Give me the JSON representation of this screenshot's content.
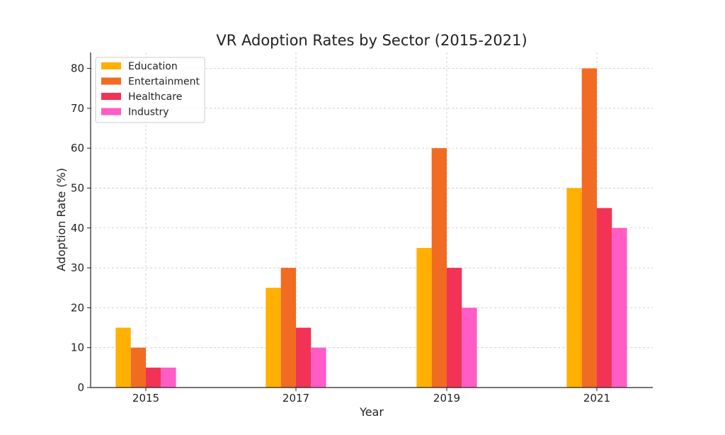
{
  "chart_data": {
    "type": "bar",
    "title": "VR Adoption Rates by Sector (2015-2021)",
    "xlabel": "Year",
    "ylabel": "Adoption Rate (%)",
    "categories": [
      "2015",
      "2017",
      "2019",
      "2021"
    ],
    "series": [
      {
        "name": "Education",
        "color": "#FFB000",
        "values": [
          15,
          25,
          35,
          50
        ]
      },
      {
        "name": "Entertainment",
        "color": "#F26B22",
        "values": [
          10,
          30,
          60,
          80
        ]
      },
      {
        "name": "Healthcare",
        "color": "#F23355",
        "values": [
          5,
          15,
          30,
          45
        ]
      },
      {
        "name": "Industry",
        "color": "#FF5CC5",
        "values": [
          5,
          10,
          20,
          40
        ]
      }
    ],
    "ylim": [
      0,
      84
    ],
    "yticks": [
      0,
      10,
      20,
      30,
      40,
      50,
      60,
      70,
      80
    ],
    "grid": true,
    "legend_position": "top-left"
  }
}
